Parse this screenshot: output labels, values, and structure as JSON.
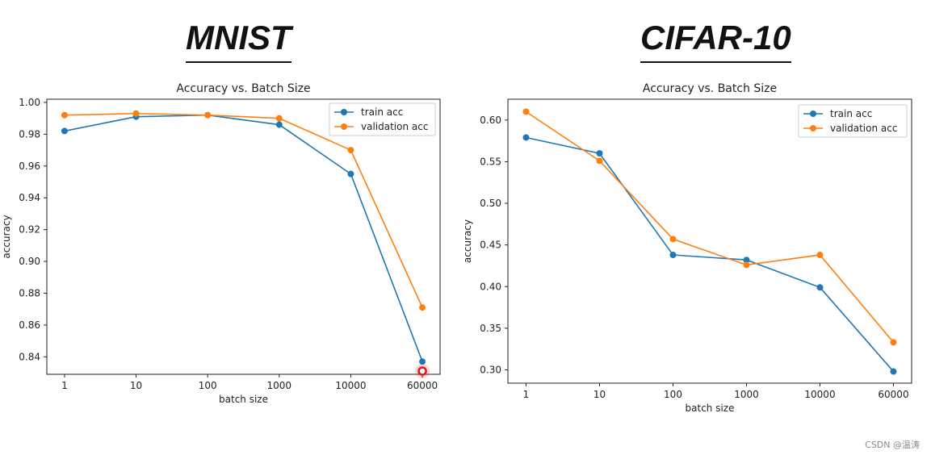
{
  "headings": {
    "left": "MNIST",
    "right": "CIFAR-10"
  },
  "watermark": "CSDN @温涛",
  "colors": {
    "train": "#1f77b4",
    "validation": "#ff7f0e",
    "highlight": "#e31a1c"
  },
  "chart_data": [
    {
      "type": "line",
      "title": "Accuracy vs. Batch Size",
      "xlabel": "batch size",
      "ylabel": "accuracy",
      "categories": [
        "1",
        "10",
        "100",
        "1000",
        "10000",
        "60000"
      ],
      "ylim": [
        0.829,
        1.002
      ],
      "yticks": [
        0.84,
        0.86,
        0.88,
        0.9,
        0.92,
        0.94,
        0.96,
        0.98,
        1.0
      ],
      "ytick_labels": [
        "0.84",
        "0.86",
        "0.88",
        "0.90",
        "0.92",
        "0.94",
        "0.96",
        "0.98",
        "1.00"
      ],
      "grid": false,
      "legend": "top-right",
      "series": [
        {
          "name": "train acc",
          "color": "#1f77b4",
          "values": [
            0.982,
            0.991,
            0.992,
            0.986,
            0.955,
            0.837
          ]
        },
        {
          "name": "validation acc",
          "color": "#ff7f0e",
          "values": [
            0.992,
            0.993,
            0.992,
            0.99,
            0.97,
            0.871
          ]
        }
      ],
      "highlight": {
        "category": "60000",
        "value": 0.831
      }
    },
    {
      "type": "line",
      "title": "Accuracy vs. Batch Size",
      "xlabel": "batch size",
      "ylabel": "accuracy",
      "categories": [
        "1",
        "10",
        "100",
        "1000",
        "10000",
        "60000"
      ],
      "ylim": [
        0.284,
        0.625
      ],
      "yticks": [
        0.3,
        0.35,
        0.4,
        0.45,
        0.5,
        0.55,
        0.6
      ],
      "ytick_labels": [
        "0.30",
        "0.35",
        "0.40",
        "0.45",
        "0.50",
        "0.55",
        "0.60"
      ],
      "grid": false,
      "legend": "top-right",
      "series": [
        {
          "name": "train acc",
          "color": "#1f77b4",
          "values": [
            0.579,
            0.56,
            0.438,
            0.432,
            0.399,
            0.298
          ]
        },
        {
          "name": "validation acc",
          "color": "#ff7f0e",
          "values": [
            0.61,
            0.551,
            0.457,
            0.426,
            0.438,
            0.333
          ]
        }
      ]
    }
  ]
}
